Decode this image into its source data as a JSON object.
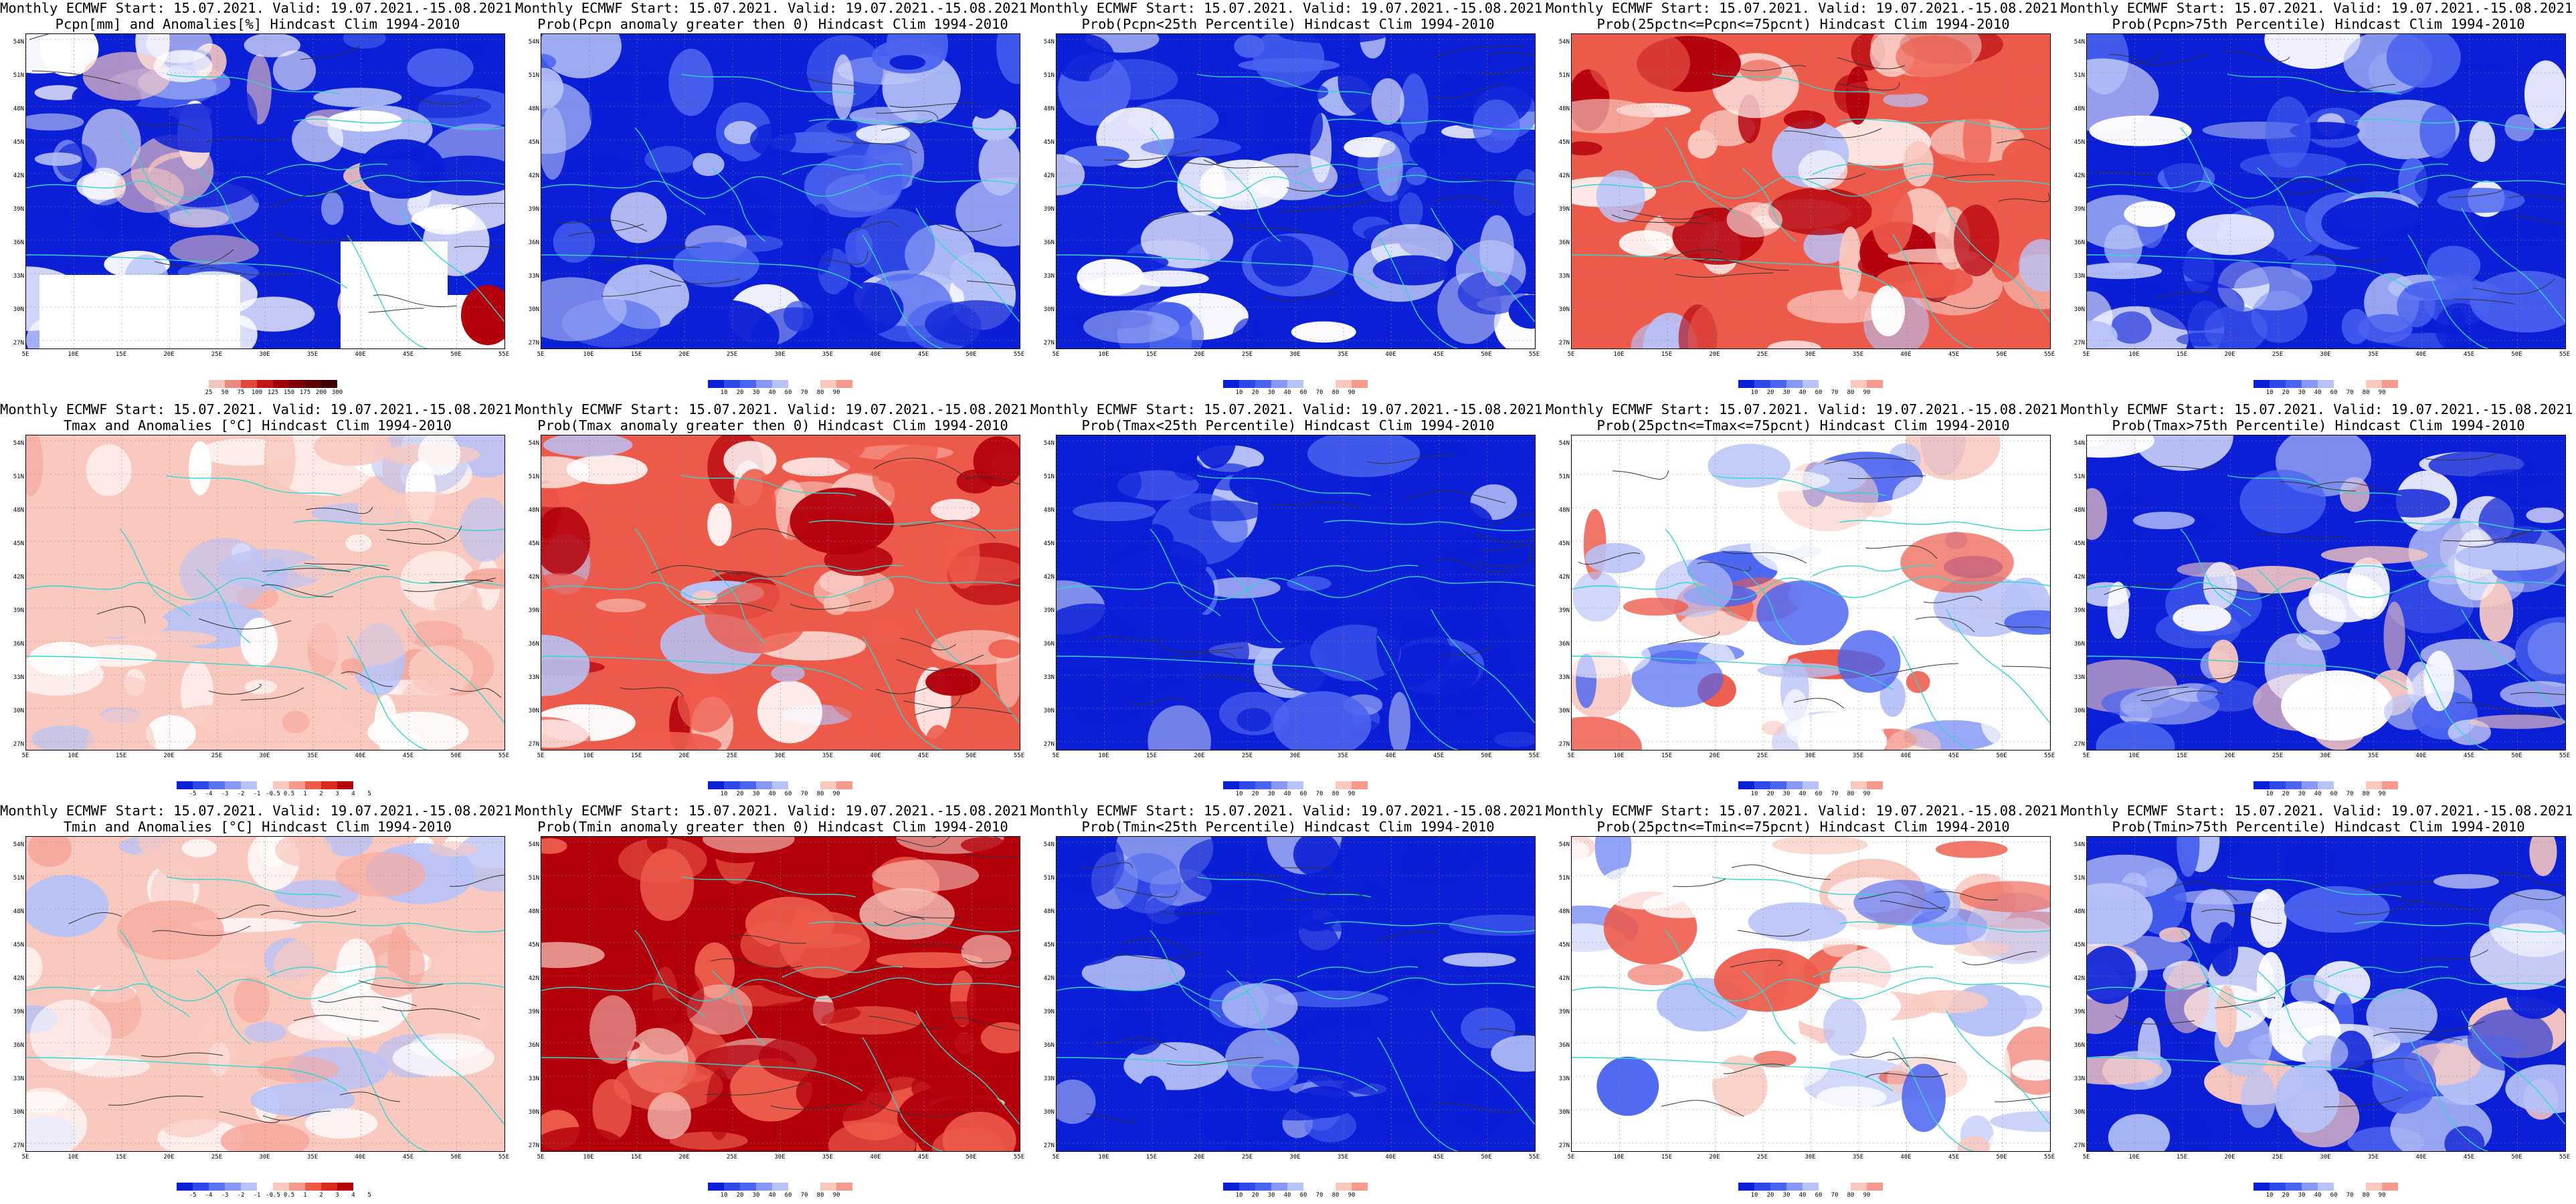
{
  "latitude_labels": [
    "54N",
    "51N",
    "48N",
    "45N",
    "42N",
    "39N",
    "36N",
    "33N",
    "30N",
    "27N"
  ],
  "longitude_labels": [
    "5E",
    "10E",
    "15E",
    "20E",
    "25E",
    "30E",
    "35E",
    "40E",
    "45E",
    "50E",
    "55E"
  ],
  "colors": {
    "coast": "#33d6cc",
    "contour": "#333333",
    "dark_blue": "#0a1fd6",
    "mid_blue": "#4a64f0",
    "light_blue": "#b7c2f7",
    "pale_red": "#f9c9c0",
    "mid_red": "#ee5a4a",
    "dark_red": "#b3000b"
  },
  "panels": [
    {
      "title_line1": "Monthly ECMWF Start: 15.07.2021. Valid: 19.07.2021.-15.08.2021.",
      "title_line2": "Pcpn[mm] and Anomalies[%] Hindcast Clim 1994-2010",
      "dominant": "blue_white",
      "scale": "pcpn",
      "colorbar_ticks": [
        "25",
        "50",
        "75",
        "100",
        "125",
        "150",
        "175",
        "200",
        "300"
      ]
    },
    {
      "title_line1": "Monthly ECMWF Start: 15.07.2021. Valid: 19.07.2021.-15.08.2021.",
      "title_line2": "Prob(Pcpn anomaly greater then 0) Hindcast Clim 1994-2010",
      "dominant": "blue",
      "scale": "prob",
      "colorbar_ticks": [
        "10",
        "20",
        "30",
        "40",
        "60",
        "70",
        "80",
        "90"
      ]
    },
    {
      "title_line1": "Monthly ECMWF Start: 15.07.2021. Valid: 19.07.2021.-15.08.2021.",
      "title_line2": "Prob(Pcpn<25th Percentile) Hindcast Clim 1994-2010",
      "dominant": "blue",
      "scale": "prob",
      "colorbar_ticks": [
        "10",
        "20",
        "30",
        "40",
        "60",
        "70",
        "80",
        "90"
      ]
    },
    {
      "title_line1": "Monthly ECMWF Start: 15.07.2021. Valid: 19.07.2021.-15.08.2021.",
      "title_line2": "Prob(25pctn<=Pcpn<=75pcnt) Hindcast Clim 1994-2010",
      "dominant": "red",
      "scale": "prob",
      "colorbar_ticks": [
        "10",
        "20",
        "30",
        "40",
        "60",
        "70",
        "80",
        "90"
      ]
    },
    {
      "title_line1": "Monthly ECMWF Start: 15.07.2021. Valid: 19.07.2021.-15.08.2021.",
      "title_line2": "Prob(Pcpn>75th Percentile) Hindcast Clim 1994-2010",
      "dominant": "blue",
      "scale": "prob",
      "colorbar_ticks": [
        "10",
        "20",
        "30",
        "40",
        "60",
        "70",
        "80",
        "90"
      ]
    },
    {
      "title_line1": "Monthly ECMWF Start: 15.07.2021. Valid: 19.07.2021.-15.08.2021.",
      "title_line2": "Tmax and Anomalies [°C] Hindcast Clim 1994-2010",
      "dominant": "pale_red",
      "scale": "anom",
      "colorbar_ticks": [
        "-5",
        "-4",
        "-3",
        "-2",
        "-1",
        "-0.5",
        "0.5",
        "1",
        "2",
        "3",
        "4",
        "5"
      ]
    },
    {
      "title_line1": "Monthly ECMWF Start: 15.07.2021. Valid: 19.07.2021.-15.08.2021.",
      "title_line2": "Prob(Tmax anomaly greater then 0) Hindcast Clim 1994-2010",
      "dominant": "red",
      "scale": "prob",
      "colorbar_ticks": [
        "10",
        "20",
        "30",
        "40",
        "60",
        "70",
        "80",
        "90"
      ]
    },
    {
      "title_line1": "Monthly ECMWF Start: 15.07.2021. Valid: 19.07.2021.-15.08.2021.",
      "title_line2": "Prob(Tmax<25th Percentile) Hindcast Clim 1994-2010",
      "dominant": "dark_blue",
      "scale": "prob",
      "colorbar_ticks": [
        "10",
        "20",
        "30",
        "40",
        "60",
        "70",
        "80",
        "90"
      ]
    },
    {
      "title_line1": "Monthly ECMWF Start: 15.07.2021. Valid: 19.07.2021.-15.08.2021.",
      "title_line2": "Prob(25pctn<=Tmax<=75pcnt) Hindcast Clim 1994-2010",
      "dominant": "pale_mixed",
      "scale": "prob",
      "colorbar_ticks": [
        "10",
        "20",
        "30",
        "40",
        "60",
        "70",
        "80",
        "90"
      ]
    },
    {
      "title_line1": "Monthly ECMWF Start: 15.07.2021. Valid: 19.07.2021.-15.08.2021.",
      "title_line2": "Prob(Tmax>75th Percentile) Hindcast Clim 1994-2010",
      "dominant": "blue_white",
      "scale": "prob",
      "colorbar_ticks": [
        "10",
        "20",
        "30",
        "40",
        "60",
        "70",
        "80",
        "90"
      ]
    },
    {
      "title_line1": "Monthly ECMWF Start: 15.07.2021. Valid: 19.07.2021.-15.08.2021.",
      "title_line2": "Tmin and Anomalies [°C] Hindcast Clim 1994-2010",
      "dominant": "pale_red",
      "scale": "anom",
      "colorbar_ticks": [
        "-5",
        "-4",
        "-3",
        "-2",
        "-1",
        "-0.5",
        "0.5",
        "1",
        "2",
        "3",
        "4",
        "5"
      ]
    },
    {
      "title_line1": "Monthly ECMWF Start: 15.07.2021. Valid: 19.07.2021.-15.08.2021.",
      "title_line2": "Prob(Tmin anomaly greater then 0) Hindcast Clim 1994-2010",
      "dominant": "dark_red",
      "scale": "prob",
      "colorbar_ticks": [
        "10",
        "20",
        "30",
        "40",
        "60",
        "70",
        "80",
        "90"
      ]
    },
    {
      "title_line1": "Monthly ECMWF Start: 15.07.2021. Valid: 19.07.2021.-15.08.2021.",
      "title_line2": "Prob(Tmin<25th Percentile) Hindcast Clim 1994-2010",
      "dominant": "dark_blue",
      "scale": "prob",
      "colorbar_ticks": [
        "10",
        "20",
        "30",
        "40",
        "60",
        "70",
        "80",
        "90"
      ]
    },
    {
      "title_line1": "Monthly ECMWF Start: 15.07.2021. Valid: 19.07.2021.-15.08.2021.",
      "title_line2": "Prob(25pctn<=Tmin<=75pcnt) Hindcast Clim 1994-2010",
      "dominant": "pale_mixed",
      "scale": "prob",
      "colorbar_ticks": [
        "10",
        "20",
        "30",
        "40",
        "60",
        "70",
        "80",
        "90"
      ]
    },
    {
      "title_line1": "Monthly ECMWF Start: 15.07.2021. Valid: 19.07.2021.-15.08.2021.",
      "title_line2": "Prob(Tmin>75th Percentile) Hindcast Clim 1994-2010",
      "dominant": "blue_white",
      "scale": "prob",
      "colorbar_ticks": [
        "10",
        "20",
        "30",
        "40",
        "60",
        "70",
        "80",
        "90"
      ]
    }
  ]
}
